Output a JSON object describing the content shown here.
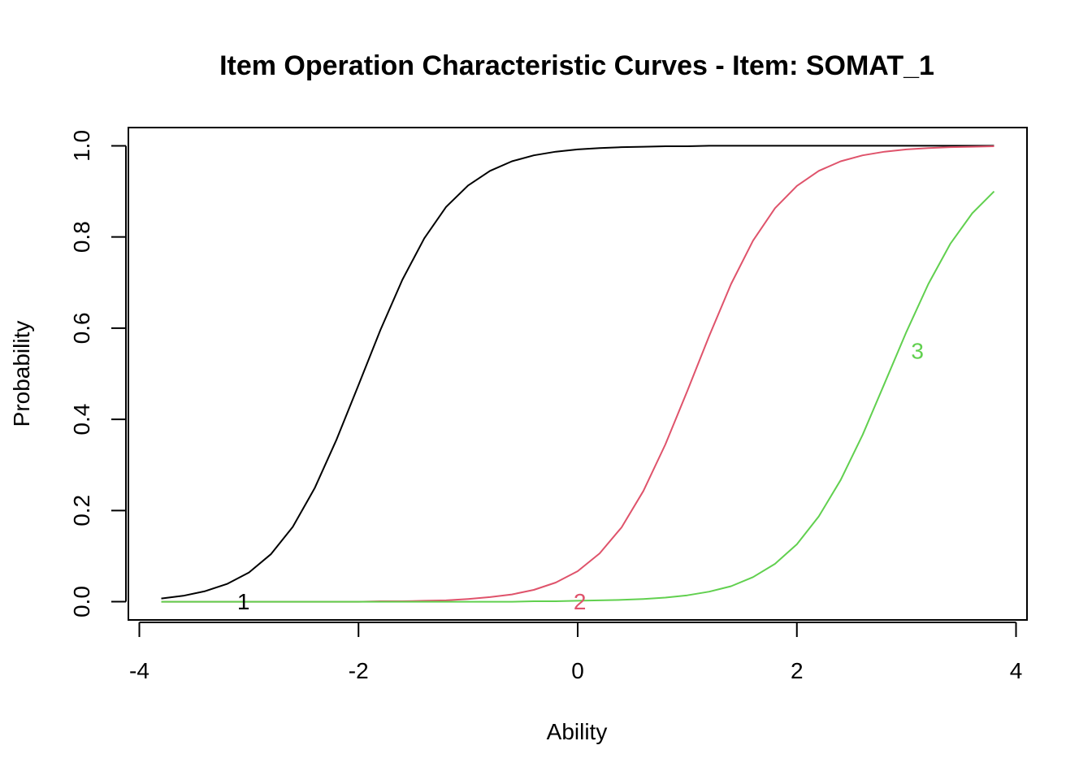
{
  "chart_data": {
    "type": "line",
    "title": "Item Operation Characteristic Curves - Item: SOMAT_1",
    "xlabel": "Ability",
    "ylabel": "Probability",
    "xlim": [
      -4.1,
      4.1
    ],
    "ylim": [
      -0.04,
      1.04
    ],
    "x_ticks": [
      -4,
      -2,
      0,
      2,
      4
    ],
    "x_tick_labels": [
      "-4",
      "-2",
      "0",
      "2",
      "4"
    ],
    "y_ticks": [
      0.0,
      0.2,
      0.4,
      0.6,
      0.8,
      1.0
    ],
    "y_tick_labels": [
      "0.0",
      "0.2",
      "0.4",
      "0.6",
      "0.8",
      "1.0"
    ],
    "grid": false,
    "legend": "none",
    "x": [
      -3.8,
      -3.6,
      -3.4,
      -3.2,
      -3.0,
      -2.8,
      -2.6,
      -2.4,
      -2.2,
      -2.0,
      -1.8,
      -1.6,
      -1.4,
      -1.2,
      -1.0,
      -0.8,
      -0.6,
      -0.4,
      -0.2,
      0.0,
      0.2,
      0.4,
      0.6,
      0.8,
      1.0,
      1.2,
      1.4,
      1.6,
      1.8,
      2.0,
      2.2,
      2.4,
      2.6,
      2.8,
      3.0,
      3.2,
      3.4,
      3.6,
      3.8
    ],
    "series": [
      {
        "name": "1",
        "color": "#000000",
        "values": [
          0.007,
          0.013,
          0.023,
          0.039,
          0.064,
          0.104,
          0.164,
          0.249,
          0.356,
          0.475,
          0.596,
          0.706,
          0.797,
          0.866,
          0.913,
          0.945,
          0.966,
          0.979,
          0.987,
          0.992,
          0.995,
          0.997,
          0.998,
          0.999,
          0.999,
          1.0,
          1.0,
          1.0,
          1.0,
          1.0,
          1.0,
          1.0,
          1.0,
          1.0,
          1.0,
          1.0,
          1.0,
          1.0,
          1.0
        ],
        "label": "1",
        "label_x": -3.05,
        "label_y": 0.0
      },
      {
        "name": "2",
        "color": "#DF536B",
        "values": [
          0.0,
          0.0,
          0.0,
          0.0,
          0.0,
          0.0,
          0.0,
          0.0,
          0.0,
          0.0,
          0.001,
          0.001,
          0.002,
          0.003,
          0.006,
          0.01,
          0.016,
          0.026,
          0.042,
          0.067,
          0.106,
          0.163,
          0.243,
          0.345,
          0.462,
          0.583,
          0.697,
          0.792,
          0.863,
          0.912,
          0.945,
          0.966,
          0.979,
          0.987,
          0.992,
          0.995,
          0.997,
          0.998,
          0.999
        ],
        "label": "2",
        "label_x": 0.02,
        "label_y": 0.0
      },
      {
        "name": "3",
        "color": "#61D04F",
        "values": [
          0.0,
          0.0,
          0.0,
          0.0,
          0.0,
          0.0,
          0.0,
          0.0,
          0.0,
          0.0,
          0.0,
          0.0,
          0.0,
          0.0,
          0.0,
          0.0,
          0.0,
          0.001,
          0.001,
          0.002,
          0.003,
          0.004,
          0.006,
          0.009,
          0.014,
          0.022,
          0.034,
          0.054,
          0.083,
          0.126,
          0.187,
          0.267,
          0.366,
          0.479,
          0.592,
          0.697,
          0.785,
          0.852,
          0.9
        ],
        "label": "3",
        "label_x": 3.1,
        "label_y": 0.55
      }
    ]
  }
}
